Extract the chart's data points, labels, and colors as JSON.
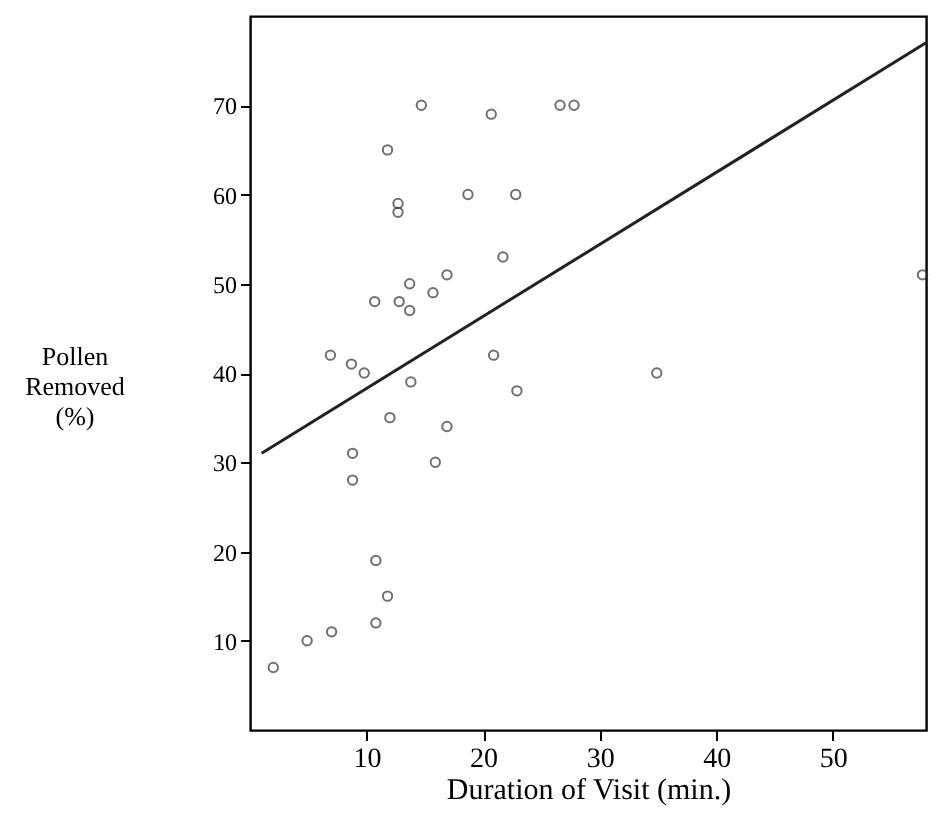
{
  "chart_data": {
    "type": "scatter",
    "xlabel": "Duration of Visit (min.)",
    "ylabel": "Pollen\nRemoved\n(%)",
    "xlim": [
      0,
      58
    ],
    "ylim": [
      0,
      80
    ],
    "xticks": [
      10,
      20,
      30,
      40,
      50
    ],
    "yticks": [
      10,
      20,
      30,
      40,
      50,
      60,
      70
    ],
    "grid": false,
    "marker": "circle",
    "series": [
      {
        "type": "scatter",
        "color": "#333333",
        "x": [
          2,
          4.9,
          7,
          10.8,
          11.8,
          10.8,
          8.8,
          8.8,
          15.9,
          16.9,
          12,
          9.8,
          8.7,
          6.9,
          13.8,
          22.9,
          20.9,
          34.9,
          10.7,
          12.8,
          13.7,
          13.7,
          15.7,
          16.9,
          21.7,
          57.7,
          12.7,
          12.7,
          18.7,
          22.8,
          11.8,
          14.7,
          20.7,
          26.6,
          27.8
        ],
        "values": [
          7,
          10,
          11,
          12,
          15,
          19,
          28,
          31,
          30,
          34,
          35,
          40,
          41,
          42,
          39,
          38,
          42,
          40,
          48,
          48,
          47,
          50,
          49,
          51,
          53,
          51,
          59,
          58,
          60,
          60,
          65,
          70,
          69,
          70,
          70
        ]
      },
      {
        "type": "line",
        "color": "#222222",
        "marker": "none",
        "x": [
          1,
          58
        ],
        "values": [
          31,
          77
        ]
      }
    ]
  }
}
